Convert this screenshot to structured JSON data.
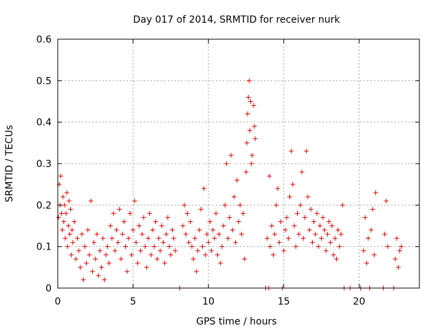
{
  "chart_data": {
    "type": "scatter",
    "title": "Day 017 of 2014, SRMTID for receiver nurk",
    "xlabel": "GPS time / hours",
    "ylabel": "SRMTID / TECUs",
    "xlim": [
      0,
      24
    ],
    "ylim": [
      0,
      0.6
    ],
    "x_ticks": [
      0,
      5,
      10,
      15,
      20
    ],
    "x_tick_labels": [
      "0",
      "5",
      "10",
      "15",
      "20"
    ],
    "y_ticks": [
      0,
      0.1,
      0.2,
      0.3,
      0.4,
      0.5,
      0.6
    ],
    "y_tick_labels": [
      "0",
      "0.1",
      "0.2",
      "0.3",
      "0.4",
      "0.5",
      "0.6"
    ],
    "grid": true,
    "marker": "plus",
    "colors": {
      "points": "#e00000",
      "grid": "#a0a0a0",
      "axis": "#000000"
    },
    "series": [
      {
        "name": "SRMTID",
        "points": [
          [
            0.05,
            0.17
          ],
          [
            0.1,
            0.25
          ],
          [
            0.15,
            0.2
          ],
          [
            0.2,
            0.27
          ],
          [
            0.25,
            0.18
          ],
          [
            0.3,
            0.14
          ],
          [
            0.35,
            0.22
          ],
          [
            0.4,
            0.16
          ],
          [
            0.45,
            0.2
          ],
          [
            0.5,
            0.12
          ],
          [
            0.55,
            0.18
          ],
          [
            0.6,
            0.23
          ],
          [
            0.65,
            0.1
          ],
          [
            0.7,
            0.15
          ],
          [
            0.75,
            0.21
          ],
          [
            0.8,
            0.13
          ],
          [
            0.85,
            0.19
          ],
          [
            0.9,
            0.08
          ],
          [
            0.95,
            0.14
          ],
          [
            1.0,
            0.11
          ],
          [
            1.1,
            0.16
          ],
          [
            1.2,
            0.07
          ],
          [
            1.3,
            0.12
          ],
          [
            1.4,
            0.09
          ],
          [
            1.5,
            0.05
          ],
          [
            1.6,
            0.13
          ],
          [
            1.7,
            0.02
          ],
          [
            1.8,
            0.1
          ],
          [
            1.9,
            0.06
          ],
          [
            2.0,
            0.14
          ],
          [
            2.1,
            0.08
          ],
          [
            2.2,
            0.21
          ],
          [
            2.3,
            0.04
          ],
          [
            2.4,
            0.11
          ],
          [
            2.5,
            0.07
          ],
          [
            2.6,
            0.13
          ],
          [
            2.7,
            0.03
          ],
          [
            2.8,
            0.09
          ],
          [
            2.9,
            0.05
          ],
          [
            3.0,
            0.12
          ],
          [
            3.1,
            0.02
          ],
          [
            3.2,
            0.08
          ],
          [
            3.3,
            0.1
          ],
          [
            3.4,
            0.06
          ],
          [
            3.5,
            0.15
          ],
          [
            3.6,
            0.12
          ],
          [
            3.7,
            0.18
          ],
          [
            3.8,
            0.09
          ],
          [
            3.9,
            0.14
          ],
          [
            4.0,
            0.11
          ],
          [
            4.1,
            0.19
          ],
          [
            4.2,
            0.07
          ],
          [
            4.3,
            0.13
          ],
          [
            4.4,
            0.16
          ],
          [
            4.5,
            0.1
          ],
          [
            4.6,
            0.04
          ],
          [
            4.7,
            0.12
          ],
          [
            4.8,
            0.18
          ],
          [
            4.9,
            0.08
          ],
          [
            5.0,
            0.14
          ],
          [
            5.1,
            0.21
          ],
          [
            5.2,
            0.11
          ],
          [
            5.3,
            0.06
          ],
          [
            5.4,
            0.15
          ],
          [
            5.5,
            0.09
          ],
          [
            5.6,
            0.13
          ],
          [
            5.7,
            0.17
          ],
          [
            5.8,
            0.1
          ],
          [
            5.9,
            0.05
          ],
          [
            6.0,
            0.12
          ],
          [
            6.1,
            0.18
          ],
          [
            6.2,
            0.08
          ],
          [
            6.3,
            0.14
          ],
          [
            6.4,
            0.1
          ],
          [
            6.5,
            0.16
          ],
          [
            6.6,
            0.07
          ],
          [
            6.7,
            0.12
          ],
          [
            6.8,
            0.09
          ],
          [
            6.9,
            0.15
          ],
          [
            7.0,
            0.11
          ],
          [
            7.1,
            0.06
          ],
          [
            7.2,
            0.13
          ],
          [
            7.3,
            0.17
          ],
          [
            7.4,
            0.1
          ],
          [
            7.5,
            0.08
          ],
          [
            7.6,
            0.14
          ],
          [
            7.7,
            0.12
          ],
          [
            7.8,
            0.09
          ],
          [
            8.1,
            0.0
          ],
          [
            8.3,
            0.15
          ],
          [
            8.4,
            0.2
          ],
          [
            8.5,
            0.13
          ],
          [
            8.6,
            0.18
          ],
          [
            8.7,
            0.11
          ],
          [
            8.8,
            0.16
          ],
          [
            8.9,
            0.1
          ],
          [
            9.0,
            0.07
          ],
          [
            9.1,
            0.12
          ],
          [
            9.2,
            0.04
          ],
          [
            9.3,
            0.09
          ],
          [
            9.4,
            0.14
          ],
          [
            9.5,
            0.19
          ],
          [
            9.6,
            0.1
          ],
          [
            9.7,
            0.24
          ],
          [
            9.8,
            0.08
          ],
          [
            9.9,
            0.13
          ],
          [
            10.0,
            0.11
          ],
          [
            10.1,
            0.16
          ],
          [
            10.2,
            0.09
          ],
          [
            10.3,
            0.14
          ],
          [
            10.4,
            0.12
          ],
          [
            10.5,
            0.18
          ],
          [
            10.6,
            0.08
          ],
          [
            10.7,
            0.13
          ],
          [
            10.8,
            0.06
          ],
          [
            10.9,
            0.1
          ],
          [
            11.0,
            0.15
          ],
          [
            11.1,
            0.2
          ],
          [
            11.2,
            0.3
          ],
          [
            11.3,
            0.12
          ],
          [
            11.4,
            0.17
          ],
          [
            11.5,
            0.32
          ],
          [
            11.6,
            0.14
          ],
          [
            11.7,
            0.22
          ],
          [
            11.8,
            0.11
          ],
          [
            11.9,
            0.26
          ],
          [
            12.0,
            0.16
          ],
          [
            12.1,
            0.2
          ],
          [
            12.2,
            0.13
          ],
          [
            12.3,
            0.18
          ],
          [
            12.4,
            0.07
          ],
          [
            12.5,
            0.28
          ],
          [
            12.55,
            0.35
          ],
          [
            12.6,
            0.42
          ],
          [
            12.65,
            0.46
          ],
          [
            12.7,
            0.5
          ],
          [
            12.75,
            0.38
          ],
          [
            12.8,
            0.45
          ],
          [
            12.85,
            0.3
          ],
          [
            12.9,
            0.32
          ],
          [
            13.0,
            0.44
          ],
          [
            13.05,
            0.39
          ],
          [
            13.1,
            0.36
          ],
          [
            13.8,
            0.0
          ],
          [
            13.9,
            0.12
          ],
          [
            14.0,
            0.0
          ],
          [
            14.05,
            0.27
          ],
          [
            14.1,
            0.1
          ],
          [
            14.2,
            0.15
          ],
          [
            14.3,
            0.08
          ],
          [
            14.4,
            0.13
          ],
          [
            14.5,
            0.2
          ],
          [
            14.6,
            0.24
          ],
          [
            14.7,
            0.11
          ],
          [
            14.8,
            0.16
          ],
          [
            14.9,
            0.0
          ],
          [
            15.0,
            0.09
          ],
          [
            15.1,
            0.14
          ],
          [
            15.2,
            0.17
          ],
          [
            15.3,
            0.12
          ],
          [
            15.4,
            0.22
          ],
          [
            15.5,
            0.33
          ],
          [
            15.6,
            0.25
          ],
          [
            15.7,
            0.15
          ],
          [
            15.8,
            0.1
          ],
          [
            15.9,
            0.18
          ],
          [
            16.0,
            0.13
          ],
          [
            16.1,
            0.2
          ],
          [
            16.2,
            0.28
          ],
          [
            16.3,
            0.12
          ],
          [
            16.4,
            0.17
          ],
          [
            16.5,
            0.33
          ],
          [
            16.6,
            0.22
          ],
          [
            16.7,
            0.14
          ],
          [
            16.8,
            0.19
          ],
          [
            16.9,
            0.11
          ],
          [
            17.0,
            0.16
          ],
          [
            17.1,
            0.13
          ],
          [
            17.2,
            0.18
          ],
          [
            17.3,
            0.1
          ],
          [
            17.4,
            0.15
          ],
          [
            17.5,
            0.12
          ],
          [
            17.6,
            0.17
          ],
          [
            17.7,
            0.14
          ],
          [
            17.8,
            0.09
          ],
          [
            17.9,
            0.13
          ],
          [
            18.0,
            0.16
          ],
          [
            18.1,
            0.11
          ],
          [
            18.2,
            0.15
          ],
          [
            18.3,
            0.08
          ],
          [
            18.4,
            0.12
          ],
          [
            18.5,
            0.07
          ],
          [
            18.6,
            0.14
          ],
          [
            18.7,
            0.1
          ],
          [
            18.8,
            0.13
          ],
          [
            18.9,
            0.2
          ],
          [
            19.0,
            0.0
          ],
          [
            19.4,
            0.0
          ],
          [
            20.1,
            0.0
          ],
          [
            20.3,
            0.09
          ],
          [
            20.4,
            0.17
          ],
          [
            20.5,
            0.06
          ],
          [
            20.6,
            0.12
          ],
          [
            20.7,
            0.0
          ],
          [
            20.8,
            0.14
          ],
          [
            20.9,
            0.19
          ],
          [
            21.0,
            0.08
          ],
          [
            21.1,
            0.23
          ],
          [
            21.6,
            0.0
          ],
          [
            21.7,
            0.13
          ],
          [
            21.8,
            0.21
          ],
          [
            21.9,
            0.1
          ],
          [
            22.3,
            0.0
          ],
          [
            22.4,
            0.07
          ],
          [
            22.5,
            0.12
          ],
          [
            22.6,
            0.05
          ],
          [
            22.7,
            0.09
          ],
          [
            22.8,
            0.1
          ]
        ]
      }
    ]
  }
}
